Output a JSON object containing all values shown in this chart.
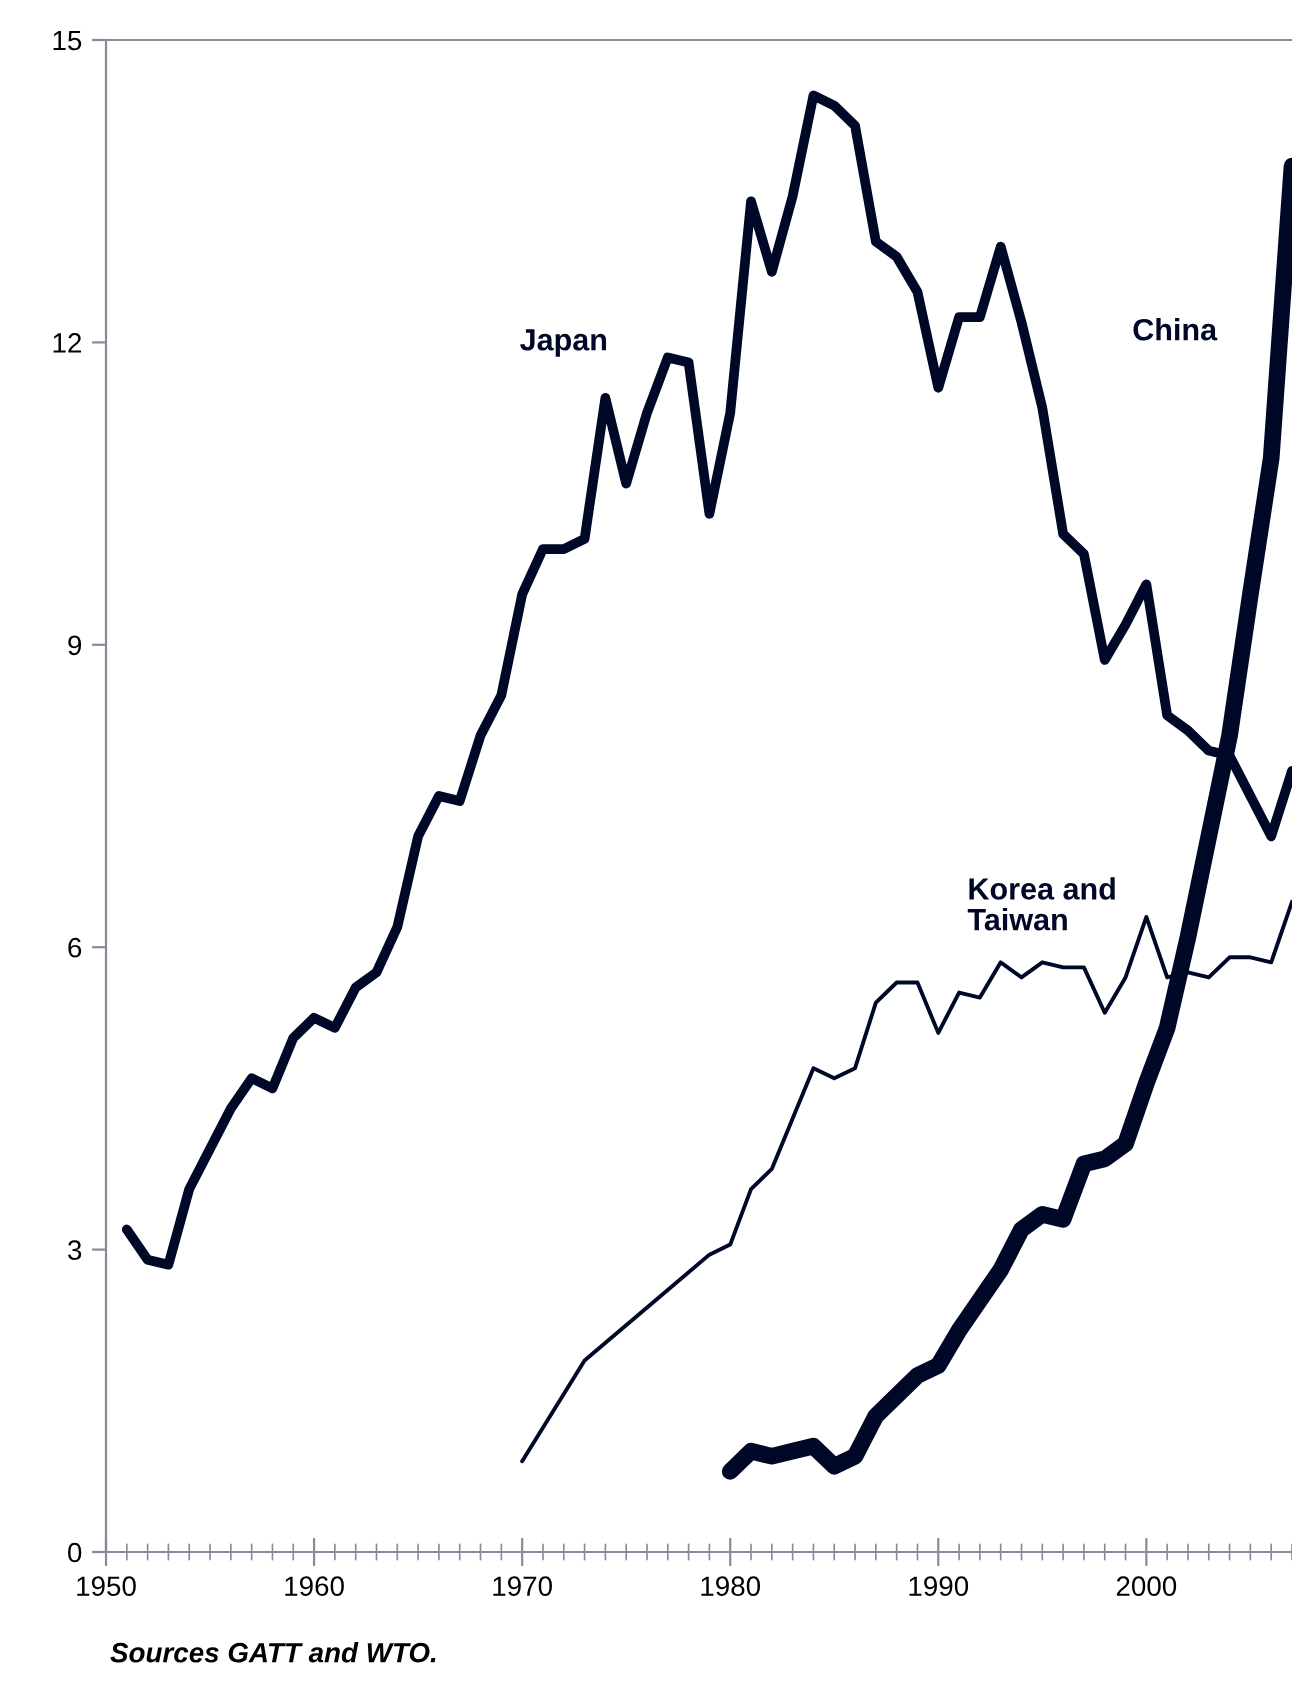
{
  "chart_data": {
    "type": "line",
    "xlim": [
      1950,
      2007
    ],
    "xticks": [
      1950,
      1960,
      1970,
      1980,
      1990,
      2000
    ],
    "ylim": [
      0,
      15
    ],
    "yticks": [
      0,
      3,
      6,
      9,
      12,
      15
    ],
    "grid": false,
    "legend": false,
    "marker": "none",
    "line_style": "solid",
    "annotations": [
      "Sources GATT and WTO."
    ],
    "series": [
      {
        "name": "Japan",
        "color": "#000828",
        "x": [
          1951,
          1952,
          1953,
          1954,
          1955,
          1956,
          1957,
          1958,
          1959,
          1960,
          1961,
          1962,
          1963,
          1964,
          1965,
          1966,
          1967,
          1968,
          1969,
          1970,
          1971,
          1972,
          1973,
          1974,
          1975,
          1976,
          1977,
          1978,
          1979,
          1980,
          1981,
          1982,
          1983,
          1984,
          1985,
          1986,
          1987,
          1988,
          1989,
          1990,
          1991,
          1992,
          1993,
          1994,
          1995,
          1996,
          1997,
          1998,
          1999,
          2000,
          2001,
          2002,
          2003,
          2004,
          2005,
          2006,
          2007
        ],
        "values": [
          3.2,
          2.9,
          2.85,
          3.6,
          4.0,
          4.4,
          4.7,
          4.6,
          5.1,
          5.3,
          5.2,
          5.6,
          5.75,
          6.2,
          7.1,
          7.5,
          7.45,
          8.1,
          8.5,
          9.5,
          9.95,
          9.95,
          10.05,
          11.45,
          10.6,
          11.3,
          11.85,
          11.8,
          10.3,
          11.3,
          13.4,
          12.7,
          13.45,
          14.45,
          14.35,
          14.15,
          13.0,
          12.85,
          12.5,
          11.55,
          12.25,
          12.25,
          12.95,
          12.2,
          11.35,
          10.1,
          9.9,
          8.85,
          9.2,
          9.6,
          8.3,
          8.15,
          7.95,
          7.9,
          7.5,
          7.1,
          7.75
        ]
      },
      {
        "name": "Korea and\nTaiwan",
        "color": "#000828",
        "x": [
          1970,
          1973,
          1979,
          1980,
          1981,
          1982,
          1983,
          1984,
          1985,
          1986,
          1987,
          1988,
          1989,
          1990,
          1991,
          1992,
          1993,
          1994,
          1995,
          1996,
          1997,
          1998,
          1999,
          2000,
          2001,
          2002,
          2003,
          2004,
          2005,
          2006,
          2007
        ],
        "values": [
          0.9,
          1.9,
          2.95,
          3.05,
          3.6,
          3.8,
          4.3,
          4.8,
          4.7,
          4.8,
          5.45,
          5.65,
          5.65,
          5.15,
          5.55,
          5.5,
          5.85,
          5.7,
          5.85,
          5.8,
          5.8,
          5.35,
          5.7,
          6.3,
          5.7,
          5.75,
          5.7,
          5.9,
          5.9,
          5.85,
          6.45
        ]
      },
      {
        "name": "China",
        "color": "#000828",
        "x": [
          1980,
          1981,
          1982,
          1983,
          1984,
          1985,
          1986,
          1987,
          1988,
          1989,
          1990,
          1991,
          1992,
          1993,
          1994,
          1995,
          1996,
          1997,
          1998,
          1999,
          2000,
          2001,
          2002,
          2003,
          2004,
          2005,
          2006,
          2007
        ],
        "values": [
          0.8,
          1.0,
          0.95,
          1.0,
          1.05,
          0.85,
          0.95,
          1.35,
          1.55,
          1.75,
          1.85,
          2.2,
          2.5,
          2.8,
          3.2,
          3.35,
          3.3,
          3.85,
          3.9,
          4.05,
          4.65,
          5.2,
          6.1,
          7.1,
          8.1,
          9.5,
          10.85,
          13.75
        ]
      }
    ]
  }
}
